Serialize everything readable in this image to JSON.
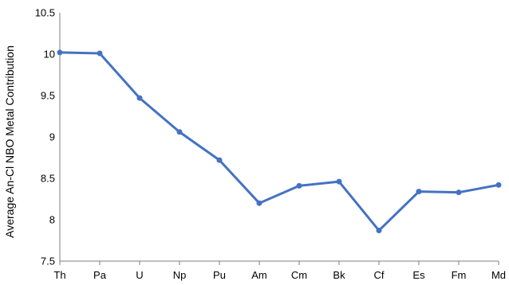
{
  "chart_data": {
    "type": "line",
    "title": "",
    "xlabel": "",
    "ylabel": "Average An-Cl NBO Metal Contribution",
    "categories": [
      "Th",
      "Pa",
      "U",
      "Np",
      "Pu",
      "Am",
      "Cm",
      "Bk",
      "Cf",
      "Es",
      "Fm",
      "Md"
    ],
    "series": [
      {
        "values": [
          10.02,
          10.01,
          9.47,
          9.06,
          8.72,
          8.2,
          8.41,
          8.46,
          7.87,
          8.34,
          8.33,
          8.42
        ]
      }
    ],
    "ylim": [
      7.5,
      10.5
    ],
    "yticks": [
      7.5,
      8,
      8.5,
      9,
      9.5,
      10,
      10.5
    ],
    "grid": false,
    "legend": "none",
    "line_color": "#4472C4"
  }
}
